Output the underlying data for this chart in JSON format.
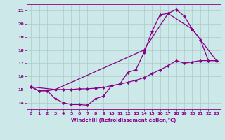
{
  "xlabel": "Windchill (Refroidissement éolien,°C)",
  "ylabel": "",
  "background_color": "#cce8e8",
  "line_color": "#880088",
  "markersize": 2.5,
  "linewidth": 0.9,
  "xlim": [
    -0.5,
    23.5
  ],
  "ylim": [
    13.5,
    21.5
  ],
  "yticks": [
    14,
    15,
    16,
    17,
    18,
    19,
    20,
    21
  ],
  "xticks": [
    0,
    1,
    2,
    3,
    4,
    5,
    6,
    7,
    8,
    9,
    10,
    11,
    12,
    13,
    14,
    15,
    16,
    17,
    18,
    19,
    20,
    21,
    22,
    23
  ],
  "grid_color": "#aacccc",
  "series1_x": [
    0,
    1,
    2,
    3,
    4,
    5,
    6,
    7,
    8,
    9,
    10,
    11,
    12,
    13,
    14,
    15,
    16,
    17,
    18,
    19,
    20,
    21,
    22,
    23
  ],
  "series1_y": [
    15.2,
    14.9,
    14.9,
    14.3,
    14.0,
    13.85,
    13.85,
    13.8,
    14.3,
    14.5,
    15.3,
    15.4,
    16.3,
    16.5,
    17.8,
    19.4,
    20.7,
    20.8,
    21.1,
    20.6,
    19.6,
    18.8,
    17.2,
    17.2
  ],
  "series2_x": [
    0,
    1,
    2,
    3,
    4,
    5,
    6,
    7,
    8,
    9,
    10,
    11,
    12,
    13,
    14,
    15,
    16,
    17,
    18,
    19,
    20,
    21,
    22,
    23
  ],
  "series2_y": [
    15.2,
    14.9,
    14.9,
    15.0,
    15.0,
    15.0,
    15.05,
    15.05,
    15.1,
    15.15,
    15.3,
    15.4,
    15.55,
    15.7,
    15.9,
    16.2,
    16.5,
    16.8,
    17.2,
    17.0,
    17.1,
    17.2,
    17.2,
    17.2
  ],
  "series3_x": [
    0,
    3,
    14,
    17,
    20,
    23
  ],
  "series3_y": [
    15.2,
    15.0,
    18.0,
    20.8,
    19.6,
    17.2
  ]
}
